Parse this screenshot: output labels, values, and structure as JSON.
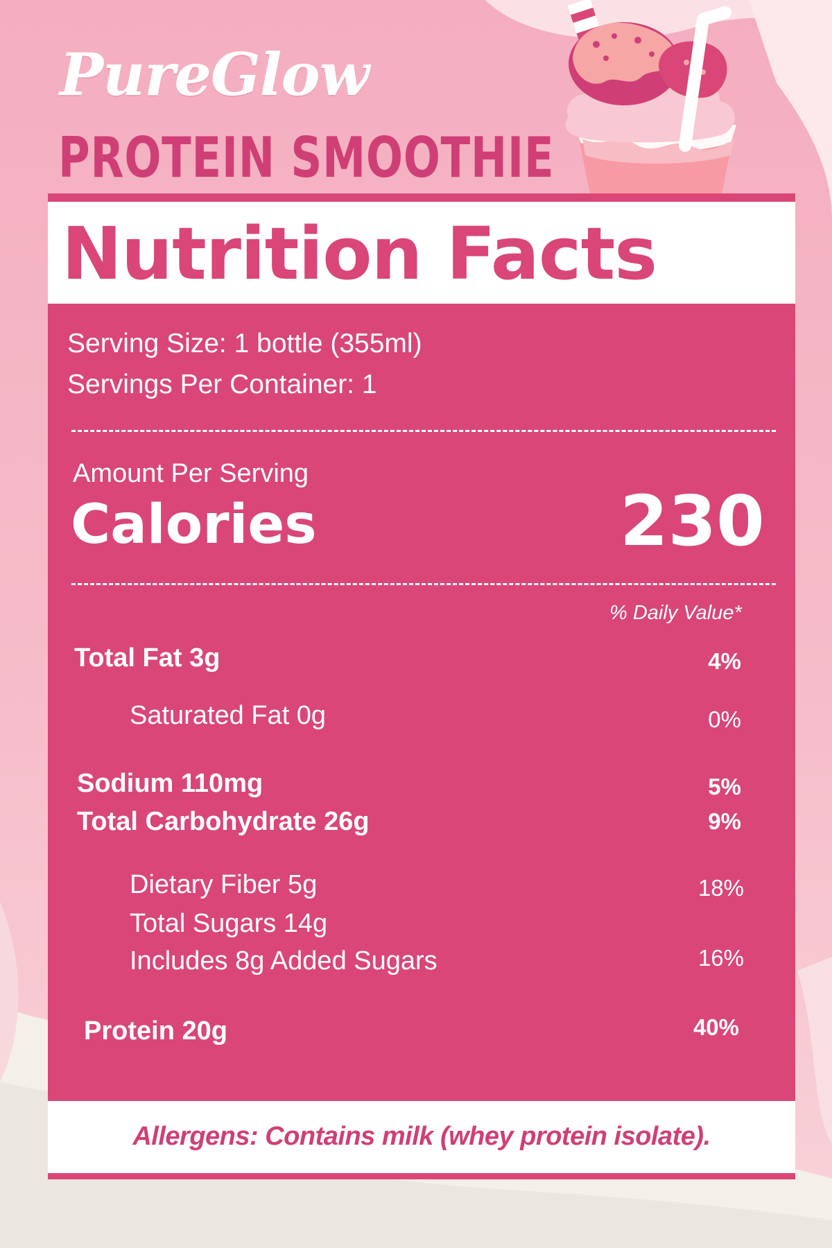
{
  "brand": {
    "name": "PureGlow",
    "product": "PROTEIN SMOOTHIE"
  },
  "label": {
    "title": "Nutrition Facts",
    "serving_size": "Serving Size: 1 bottle (355ml)",
    "servings_per_container": "Servings Per Container: 1",
    "amount_per_serving": "Amount Per Serving",
    "calories_label": "Calories",
    "calories_value": "230",
    "daily_value_header": "% Daily Value*",
    "nutrients": [
      {
        "name": "Total Fat 3g",
        "dv": "4%"
      },
      {
        "name": "Saturated Fat 0g",
        "dv": "0%"
      },
      {
        "name": "Sodium 110mg",
        "dv": "5%"
      },
      {
        "name": "Total Carbohydrate 26g",
        "dv": "9%"
      },
      {
        "name": "Dietary Fiber 5g",
        "dv": "18%"
      },
      {
        "name": "Total Sugars 14g",
        "dv": ""
      },
      {
        "name": "Includes 8g Added Sugars",
        "dv": "16%"
      },
      {
        "name": "Protein 20g",
        "dv": "40%"
      }
    ],
    "allergens": "Allergens: Contains milk (whey protein isolate)."
  },
  "colors": {
    "panel": "#d94677",
    "accent_text": "#cf3f76",
    "background": "#f4b3c2"
  },
  "icons": [
    "smoothie-cup-illustration"
  ]
}
